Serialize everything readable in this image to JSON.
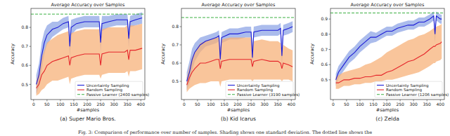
{
  "chart_data": [
    {
      "type": "line",
      "title": "Average Accuracy over Samples",
      "subtitle": "(a) Super Mario Bros.",
      "x_label": "#samples",
      "y_label": "Accuracy",
      "x": [
        10,
        20,
        30,
        40,
        50,
        70,
        90,
        110,
        130,
        135,
        140,
        160,
        190,
        220,
        245,
        250,
        255,
        280,
        310,
        340,
        350,
        355,
        360,
        380,
        405
      ],
      "xlim": [
        -10,
        415
      ],
      "xticks": [
        0,
        50,
        100,
        150,
        200,
        250,
        300,
        350,
        400
      ],
      "ylim": [
        0.42,
        0.9
      ],
      "yticks": [
        0.5,
        0.6,
        0.7,
        0.8
      ],
      "grid": false,
      "legend": "lower right",
      "series": [
        {
          "name": "Uncertainty Sampling",
          "color": "#1c1cd6",
          "values": [
            0.5,
            0.55,
            0.65,
            0.72,
            0.76,
            0.79,
            0.8,
            0.82,
            0.83,
            0.7,
            0.8,
            0.82,
            0.83,
            0.83,
            0.83,
            0.72,
            0.82,
            0.83,
            0.84,
            0.84,
            0.84,
            0.74,
            0.83,
            0.84,
            0.85
          ],
          "lower": [
            0.45,
            0.49,
            0.58,
            0.66,
            0.71,
            0.75,
            0.77,
            0.79,
            0.8,
            0.64,
            0.76,
            0.79,
            0.8,
            0.8,
            0.8,
            0.67,
            0.78,
            0.8,
            0.81,
            0.81,
            0.81,
            0.69,
            0.8,
            0.81,
            0.82
          ],
          "upper": [
            0.55,
            0.61,
            0.72,
            0.78,
            0.81,
            0.83,
            0.83,
            0.85,
            0.86,
            0.76,
            0.84,
            0.85,
            0.86,
            0.86,
            0.86,
            0.77,
            0.86,
            0.86,
            0.87,
            0.87,
            0.87,
            0.79,
            0.86,
            0.87,
            0.88
          ]
        },
        {
          "name": "Random Sampling",
          "color": "#e5262b",
          "values": [
            0.48,
            0.5,
            0.55,
            0.57,
            0.6,
            0.62,
            0.63,
            0.64,
            0.65,
            0.6,
            0.64,
            0.65,
            0.66,
            0.66,
            0.66,
            0.6,
            0.66,
            0.67,
            0.67,
            0.67,
            0.68,
            0.63,
            0.68,
            0.68,
            0.69
          ],
          "lower": [
            0.44,
            0.45,
            0.47,
            0.48,
            0.5,
            0.52,
            0.52,
            0.53,
            0.54,
            0.5,
            0.53,
            0.54,
            0.55,
            0.55,
            0.55,
            0.53,
            0.55,
            0.56,
            0.56,
            0.56,
            0.57,
            0.54,
            0.57,
            0.57,
            0.58
          ],
          "upper": [
            0.52,
            0.56,
            0.64,
            0.68,
            0.72,
            0.74,
            0.76,
            0.77,
            0.78,
            0.72,
            0.77,
            0.78,
            0.79,
            0.79,
            0.79,
            0.72,
            0.79,
            0.8,
            0.8,
            0.8,
            0.81,
            0.74,
            0.81,
            0.81,
            0.82
          ]
        }
      ],
      "reference": {
        "name": "Passive Learner (2400 samples)",
        "color": "#3cb043",
        "line_style": "dashed",
        "value": 0.87
      }
    },
    {
      "type": "line",
      "title": "Average Accuracy over Samples",
      "subtitle": "(b) Kid Icarus",
      "x_label": "#samples",
      "y_label": "Accuracy",
      "x": [
        10,
        20,
        30,
        40,
        60,
        80,
        100,
        120,
        130,
        135,
        140,
        170,
        200,
        230,
        250,
        255,
        260,
        290,
        320,
        350,
        360,
        365,
        370,
        390,
        405
      ],
      "xlim": [
        -10,
        415
      ],
      "xticks": [
        0,
        50,
        100,
        150,
        200,
        250,
        300,
        350,
        400
      ],
      "ylim": [
        0.4,
        0.9
      ],
      "yticks": [
        0.5,
        0.6,
        0.7,
        0.8
      ],
      "grid": false,
      "legend": "lower right",
      "series": [
        {
          "name": "Uncertainty Sampling",
          "color": "#1c1cd6",
          "values": [
            0.5,
            0.55,
            0.62,
            0.66,
            0.7,
            0.72,
            0.73,
            0.74,
            0.75,
            0.62,
            0.74,
            0.76,
            0.76,
            0.77,
            0.77,
            0.63,
            0.77,
            0.78,
            0.78,
            0.78,
            0.79,
            0.64,
            0.78,
            0.79,
            0.8
          ],
          "lower": [
            0.45,
            0.49,
            0.56,
            0.61,
            0.66,
            0.69,
            0.7,
            0.71,
            0.72,
            0.56,
            0.71,
            0.73,
            0.73,
            0.74,
            0.74,
            0.57,
            0.74,
            0.75,
            0.75,
            0.75,
            0.76,
            0.58,
            0.75,
            0.76,
            0.77
          ],
          "upper": [
            0.55,
            0.61,
            0.68,
            0.71,
            0.74,
            0.75,
            0.76,
            0.77,
            0.78,
            0.68,
            0.77,
            0.79,
            0.79,
            0.8,
            0.8,
            0.69,
            0.8,
            0.81,
            0.81,
            0.81,
            0.82,
            0.7,
            0.81,
            0.82,
            0.83
          ]
        },
        {
          "name": "Random Sampling",
          "color": "#e5262b",
          "values": [
            0.48,
            0.52,
            0.55,
            0.57,
            0.6,
            0.6,
            0.61,
            0.62,
            0.62,
            0.57,
            0.61,
            0.62,
            0.62,
            0.62,
            0.62,
            0.58,
            0.61,
            0.62,
            0.61,
            0.61,
            0.6,
            0.57,
            0.6,
            0.59,
            0.58
          ],
          "lower": [
            0.44,
            0.46,
            0.47,
            0.48,
            0.49,
            0.49,
            0.5,
            0.5,
            0.5,
            0.47,
            0.5,
            0.51,
            0.51,
            0.51,
            0.51,
            0.5,
            0.51,
            0.51,
            0.51,
            0.51,
            0.51,
            0.5,
            0.51,
            0.51,
            0.5
          ],
          "upper": [
            0.52,
            0.58,
            0.63,
            0.66,
            0.71,
            0.72,
            0.73,
            0.74,
            0.74,
            0.68,
            0.73,
            0.74,
            0.74,
            0.74,
            0.74,
            0.67,
            0.72,
            0.73,
            0.72,
            0.72,
            0.71,
            0.65,
            0.7,
            0.68,
            0.67
          ]
        }
      ],
      "reference": {
        "name": "Passive Learner (3190 samples)",
        "color": "#3cb043",
        "line_style": "dashed",
        "value": 0.85
      }
    },
    {
      "type": "line",
      "title": "Average Accuracy over Samples",
      "subtitle": "(c) Zelda",
      "x_label": "#samples",
      "y_label": "Accuracy",
      "x": [
        10,
        20,
        40,
        60,
        80,
        100,
        120,
        140,
        160,
        180,
        200,
        220,
        240,
        260,
        280,
        300,
        320,
        340,
        360,
        375,
        380,
        385,
        400,
        405
      ],
      "xlim": [
        -10,
        415
      ],
      "xticks": [
        0,
        50,
        100,
        150,
        200,
        250,
        300,
        350,
        400
      ],
      "ylim": [
        0.37,
        0.97
      ],
      "yticks": [
        0.5,
        0.6,
        0.7,
        0.8,
        0.9
      ],
      "grid": false,
      "legend": "lower right",
      "series": [
        {
          "name": "Uncertainty Sampling",
          "color": "#1c1cd6",
          "values": [
            0.5,
            0.55,
            0.6,
            0.65,
            0.68,
            0.72,
            0.75,
            0.78,
            0.78,
            0.8,
            0.82,
            0.82,
            0.84,
            0.85,
            0.86,
            0.86,
            0.88,
            0.88,
            0.9,
            0.92,
            0.8,
            0.92,
            0.9,
            0.9
          ],
          "lower": [
            0.46,
            0.51,
            0.56,
            0.61,
            0.64,
            0.68,
            0.71,
            0.74,
            0.75,
            0.77,
            0.79,
            0.79,
            0.81,
            0.82,
            0.83,
            0.83,
            0.85,
            0.85,
            0.87,
            0.89,
            0.74,
            0.89,
            0.87,
            0.87
          ],
          "upper": [
            0.54,
            0.59,
            0.64,
            0.69,
            0.72,
            0.76,
            0.79,
            0.82,
            0.81,
            0.83,
            0.85,
            0.85,
            0.87,
            0.88,
            0.89,
            0.89,
            0.91,
            0.91,
            0.93,
            0.95,
            0.86,
            0.95,
            0.93,
            0.93
          ]
        },
        {
          "name": "Random Sampling",
          "color": "#e5262b",
          "values": [
            0.48,
            0.48,
            0.5,
            0.5,
            0.51,
            0.51,
            0.52,
            0.52,
            0.53,
            0.53,
            0.55,
            0.56,
            0.58,
            0.6,
            0.62,
            0.63,
            0.65,
            0.67,
            0.7,
            0.72,
            0.72,
            0.73,
            0.74,
            0.75
          ],
          "lower": [
            0.44,
            0.44,
            0.46,
            0.46,
            0.47,
            0.47,
            0.48,
            0.48,
            0.49,
            0.49,
            0.5,
            0.5,
            0.51,
            0.52,
            0.53,
            0.54,
            0.55,
            0.57,
            0.59,
            0.61,
            0.61,
            0.62,
            0.63,
            0.64
          ],
          "upper": [
            0.52,
            0.53,
            0.55,
            0.56,
            0.57,
            0.58,
            0.6,
            0.61,
            0.63,
            0.65,
            0.68,
            0.7,
            0.72,
            0.74,
            0.76,
            0.77,
            0.79,
            0.8,
            0.82,
            0.84,
            0.84,
            0.85,
            0.86,
            0.87
          ]
        }
      ],
      "reference": {
        "name": "Passive Learner (1206 samples)",
        "color": "#3cb043",
        "line_style": "dashed",
        "value": 0.94
      }
    }
  ],
  "caption": "Fig. 3: Comparison of performance over number of samples. Shading shows one standard deviation. The dotted line shows the"
}
